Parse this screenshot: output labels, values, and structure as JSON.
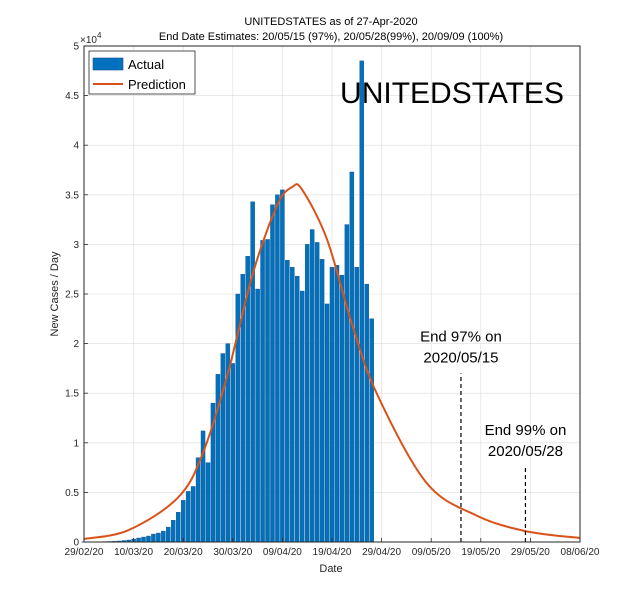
{
  "chart_data": {
    "type": "bar",
    "title": "UNITEDSTATES as of 27-Apr-2020",
    "subtitle": "End Date Estimates: 20/05/15 (97%), 20/05/28(99%), 20/09/09 (100%)",
    "big_label": "UNITEDSTATES",
    "xlabel": "Date",
    "ylabel": "New Cases / Day",
    "y_exponent_label": "×10",
    "y_exponent_power": "4",
    "x_start": "2020-02-29",
    "x_end": "2020-06-08",
    "ylim": [
      0,
      50000
    ],
    "grid": true,
    "legend_position": "top-left",
    "x_ticks": [
      {
        "date": "2020-02-29",
        "label": "29/02/20"
      },
      {
        "date": "2020-03-10",
        "label": "10/03/20"
      },
      {
        "date": "2020-03-20",
        "label": "20/03/20"
      },
      {
        "date": "2020-03-30",
        "label": "30/03/20"
      },
      {
        "date": "2020-04-09",
        "label": "09/04/20"
      },
      {
        "date": "2020-04-19",
        "label": "19/04/20"
      },
      {
        "date": "2020-04-29",
        "label": "29/04/20"
      },
      {
        "date": "2020-05-09",
        "label": "09/05/20"
      },
      {
        "date": "2020-05-19",
        "label": "19/05/20"
      },
      {
        "date": "2020-05-29",
        "label": "29/05/20"
      },
      {
        "date": "2020-06-08",
        "label": "08/06/20"
      }
    ],
    "y_ticks": [
      {
        "value": 0,
        "label": "0"
      },
      {
        "value": 5000,
        "label": "0.5"
      },
      {
        "value": 10000,
        "label": "1"
      },
      {
        "value": 15000,
        "label": "1.5"
      },
      {
        "value": 20000,
        "label": "2"
      },
      {
        "value": 25000,
        "label": "2.5"
      },
      {
        "value": 30000,
        "label": "3"
      },
      {
        "value": 35000,
        "label": "3.5"
      },
      {
        "value": 40000,
        "label": "4"
      },
      {
        "value": 45000,
        "label": "4.5"
      },
      {
        "value": 50000,
        "label": "5"
      }
    ],
    "series": [
      {
        "name": "Actual",
        "kind": "bar",
        "color": "#0072BD",
        "edge_color": "#1a4f8a",
        "x": [
          "2020-02-29",
          "2020-03-01",
          "2020-03-02",
          "2020-03-03",
          "2020-03-04",
          "2020-03-05",
          "2020-03-06",
          "2020-03-07",
          "2020-03-08",
          "2020-03-09",
          "2020-03-10",
          "2020-03-11",
          "2020-03-12",
          "2020-03-13",
          "2020-03-14",
          "2020-03-15",
          "2020-03-16",
          "2020-03-17",
          "2020-03-18",
          "2020-03-19",
          "2020-03-20",
          "2020-03-21",
          "2020-03-22",
          "2020-03-23",
          "2020-03-24",
          "2020-03-25",
          "2020-03-26",
          "2020-03-27",
          "2020-03-28",
          "2020-03-29",
          "2020-03-30",
          "2020-03-31",
          "2020-04-01",
          "2020-04-02",
          "2020-04-03",
          "2020-04-04",
          "2020-04-05",
          "2020-04-06",
          "2020-04-07",
          "2020-04-08",
          "2020-04-09",
          "2020-04-10",
          "2020-04-11",
          "2020-04-12",
          "2020-04-13",
          "2020-04-14",
          "2020-04-15",
          "2020-04-16",
          "2020-04-17",
          "2020-04-18",
          "2020-04-19",
          "2020-04-20",
          "2020-04-21",
          "2020-04-22",
          "2020-04-23",
          "2020-04-24",
          "2020-04-25",
          "2020-04-26",
          "2020-04-27"
        ],
        "values": [
          20,
          20,
          20,
          30,
          40,
          50,
          70,
          100,
          150,
          200,
          300,
          400,
          500,
          600,
          800,
          900,
          1100,
          1500,
          2200,
          3000,
          4200,
          5100,
          5600,
          8500,
          11200,
          8000,
          14000,
          16900,
          19000,
          20000,
          18000,
          25000,
          27000,
          28800,
          34300,
          25500,
          30400,
          30500,
          34000,
          35000,
          35500,
          28400,
          27700,
          26800,
          25300,
          30000,
          31500,
          30200,
          28500,
          24000,
          27700,
          27900,
          26900,
          32000,
          37300,
          27700,
          48500,
          26000,
          22500
        ]
      },
      {
        "name": "Prediction",
        "kind": "line",
        "color": "#D95319",
        "x": [
          "2020-02-29",
          "2020-03-09",
          "2020-03-19",
          "2020-03-24",
          "2020-03-29",
          "2020-04-03",
          "2020-04-08",
          "2020-04-11",
          "2020-04-13",
          "2020-04-18",
          "2020-04-23",
          "2020-04-28",
          "2020-05-08",
          "2020-05-18",
          "2020-05-28",
          "2020-06-08"
        ],
        "values": [
          300,
          1200,
          4500,
          9000,
          17000,
          27000,
          34000,
          35800,
          35500,
          30500,
          22000,
          15000,
          6000,
          2700,
          1100,
          400
        ]
      }
    ],
    "annotations": [
      {
        "line1": "End 97% on",
        "line2": "2020/05/15",
        "date": "2020-05-15",
        "y_bottom": 0,
        "y_top": 17000,
        "text_y": 20200
      },
      {
        "line1": "End 99% on",
        "line2": "2020/05/28",
        "date": "2020-05-28",
        "y_bottom": 0,
        "y_top": 7500,
        "text_y": 10800
      }
    ]
  }
}
